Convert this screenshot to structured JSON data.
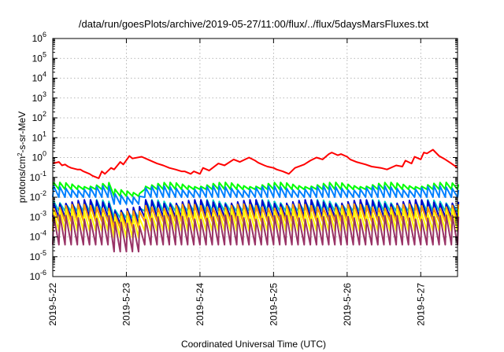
{
  "chart_data": {
    "type": "line",
    "title": "/data/run/goesPlots/archive/2019-05-27/11:00/flux/../flux/5daysMarsFluxes.txt",
    "xlabel": "Coordinated Universal Time (UTC)",
    "ylabel": "protons/cm²-s-sr-MeV",
    "ylabel_parts": {
      "base": "protons/cm",
      "sup": "2",
      "rest": "-s-sr-MeV"
    },
    "xscale": "time",
    "yscale": "log",
    "xlim": [
      "2019-05-22T00:00",
      "2019-05-27T12:00"
    ],
    "ylim": [
      1e-06,
      1000000.0
    ],
    "grid": true,
    "legend": "none",
    "x_ticks": [
      "2019-5-22",
      "2019-5-23",
      "2019-5-24",
      "2019-5-25",
      "2019-5-26",
      "2019-5-27"
    ],
    "y_ticks": [
      {
        "base": "10",
        "exp": "6"
      },
      {
        "base": "10",
        "exp": "5"
      },
      {
        "base": "10",
        "exp": "4"
      },
      {
        "base": "10",
        "exp": "3"
      },
      {
        "base": "10",
        "exp": "2"
      },
      {
        "base": "10",
        "exp": "1"
      },
      {
        "base": "10",
        "exp": "0"
      },
      {
        "base": "10",
        "exp": "-1"
      },
      {
        "base": "10",
        "exp": "-2"
      },
      {
        "base": "10",
        "exp": "-3"
      },
      {
        "base": "10",
        "exp": "-4"
      },
      {
        "base": "10",
        "exp": "-5"
      },
      {
        "base": "10",
        "exp": "-6"
      }
    ],
    "series": [
      {
        "color": "#ff0000",
        "x": [
          "2019-05-22T00:00",
          "2019-05-22T02:00",
          "2019-05-22T03:00",
          "2019-05-22T04:00",
          "2019-05-22T05:00",
          "2019-05-22T06:00",
          "2019-05-22T08:00",
          "2019-05-22T09:00",
          "2019-05-22T10:00",
          "2019-05-22T12:00",
          "2019-05-22T13:00",
          "2019-05-22T15:00",
          "2019-05-22T16:00",
          "2019-05-22T17:00",
          "2019-05-22T19:00",
          "2019-05-22T20:00",
          "2019-05-22T22:00",
          "2019-05-22T23:00",
          "2019-05-23T01:00",
          "2019-05-23T02:00",
          "2019-05-23T05:00",
          "2019-05-23T07:00",
          "2019-05-23T10:00",
          "2019-05-23T12:00",
          "2019-05-23T14:00",
          "2019-05-23T16:00",
          "2019-05-23T18:00",
          "2019-05-23T19:00",
          "2019-05-23T21:00",
          "2019-05-23T22:00",
          "2019-05-24T00:00",
          "2019-05-24T01:00",
          "2019-05-24T03:00",
          "2019-05-24T06:00",
          "2019-05-24T08:00",
          "2019-05-24T11:00",
          "2019-05-24T13:00",
          "2019-05-24T16:00",
          "2019-05-24T18:00",
          "2019-05-24T19:00",
          "2019-05-24T21:00",
          "2019-05-24T22:00",
          "2019-05-25T00:00",
          "2019-05-25T01:00",
          "2019-05-25T03:00",
          "2019-05-25T05:00",
          "2019-05-25T07:00",
          "2019-05-25T10:00",
          "2019-05-25T12:00",
          "2019-05-25T14:00",
          "2019-05-25T16:00",
          "2019-05-25T18:00",
          "2019-05-25T19:00",
          "2019-05-25T21:00",
          "2019-05-25T22:00",
          "2019-05-26T00:00",
          "2019-05-26T01:00",
          "2019-05-26T03:00",
          "2019-05-26T06:00",
          "2019-05-26T08:00",
          "2019-05-26T11:00",
          "2019-05-26T13:00",
          "2019-05-26T16:00",
          "2019-05-26T18:00",
          "2019-05-26T19:00",
          "2019-05-26T21:00",
          "2019-05-26T22:00",
          "2019-05-27T00:00",
          "2019-05-27T01:00",
          "2019-05-27T02:00",
          "2019-05-27T04:00",
          "2019-05-27T06:00",
          "2019-05-27T08:00",
          "2019-05-27T10:00",
          "2019-05-27T12:00"
        ],
        "y": [
          0.5,
          0.6,
          0.4,
          0.45,
          0.35,
          0.3,
          0.25,
          0.25,
          0.2,
          0.15,
          0.12,
          0.09,
          0.2,
          0.15,
          0.3,
          0.25,
          0.6,
          0.45,
          1.2,
          0.9,
          1.1,
          0.8,
          0.5,
          0.4,
          0.3,
          0.25,
          0.2,
          0.2,
          0.15,
          0.2,
          0.15,
          0.3,
          0.22,
          0.5,
          0.4,
          0.8,
          0.6,
          1.0,
          0.7,
          0.55,
          0.4,
          0.35,
          0.3,
          0.25,
          0.2,
          0.15,
          0.3,
          0.45,
          0.7,
          1.0,
          0.8,
          1.5,
          1.8,
          1.3,
          1.5,
          1.1,
          0.8,
          0.6,
          0.45,
          0.35,
          0.3,
          0.25,
          0.4,
          0.35,
          0.7,
          0.5,
          1.1,
          0.8,
          1.8,
          1.6,
          2.5,
          1.2,
          0.8,
          0.5,
          0.3
        ]
      },
      {
        "color": "#00ff00",
        "x": [],
        "y": [],
        "base": 0.025,
        "amp": 1.8,
        "period_h": 2.0
      },
      {
        "color": "#0080ff",
        "x": [],
        "y": [],
        "base": 0.01,
        "amp": 3.0,
        "period_h": 2.0
      },
      {
        "color": "#00c8c8",
        "x": [],
        "y": [],
        "base": 0.002,
        "amp": 3.0,
        "period_h": 2.0
      },
      {
        "color": "#0000cc",
        "x": [],
        "y": [],
        "base": 0.001,
        "amp": 6.0,
        "period_h": 2.0
      },
      {
        "color": "#ff9900",
        "x": [],
        "y": [],
        "base": 0.0006,
        "amp": 6.0,
        "period_h": 2.0
      },
      {
        "color": "#ffff00",
        "x": [],
        "y": [],
        "base": 0.0002,
        "amp": 10.0,
        "period_h": 2.0
      },
      {
        "color": "#993366",
        "x": [],
        "y": [],
        "base": 4e-05,
        "amp": 25.0,
        "period_h": 2.0
      }
    ]
  }
}
